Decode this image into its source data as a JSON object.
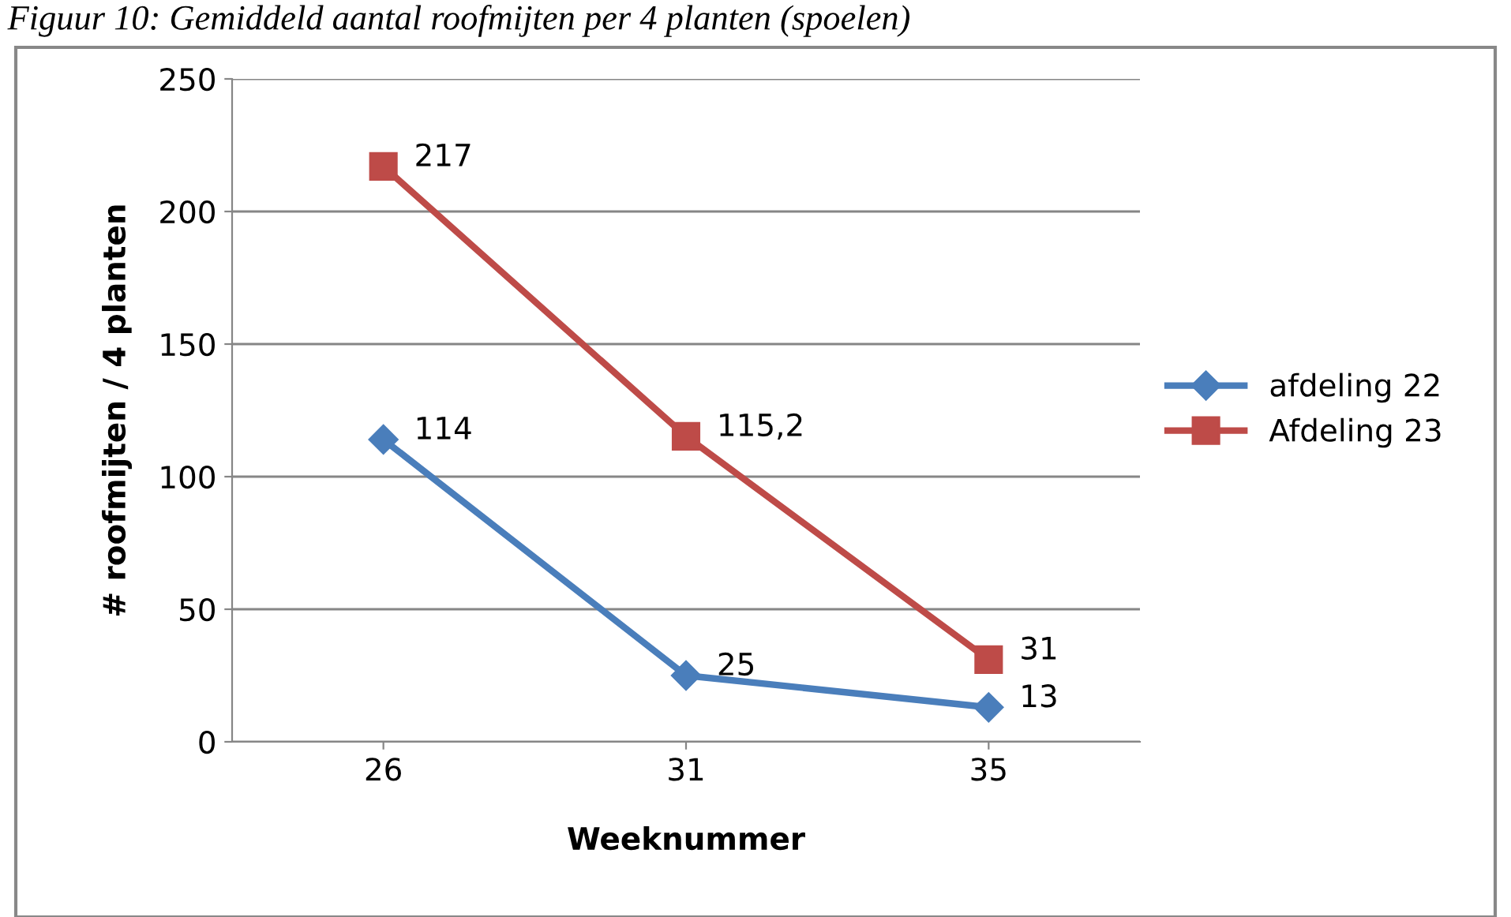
{
  "chart_data": {
    "type": "line",
    "title": "Figuur 10: Gemiddeld aantal roofmijten per 4 planten (spoelen)",
    "xlabel": "Weeknummer",
    "ylabel": "# roofmijten / 4 planten",
    "categories": [
      "26",
      "31",
      "35"
    ],
    "series": [
      {
        "name": "afdeling 22",
        "color": "#4a7ebb",
        "marker": "diamond",
        "values": [
          114,
          25,
          13
        ],
        "value_labels": [
          "114",
          "25",
          "13"
        ]
      },
      {
        "name": "Afdeling 23",
        "color": "#be4b48",
        "marker": "square",
        "values": [
          217,
          115.2,
          31
        ],
        "value_labels": [
          "217",
          "115,2",
          "31"
        ]
      }
    ],
    "ylim": [
      0,
      250
    ],
    "yticks": [
      0,
      50,
      100,
      150,
      200,
      250
    ],
    "grid": "y",
    "legend": "right"
  }
}
